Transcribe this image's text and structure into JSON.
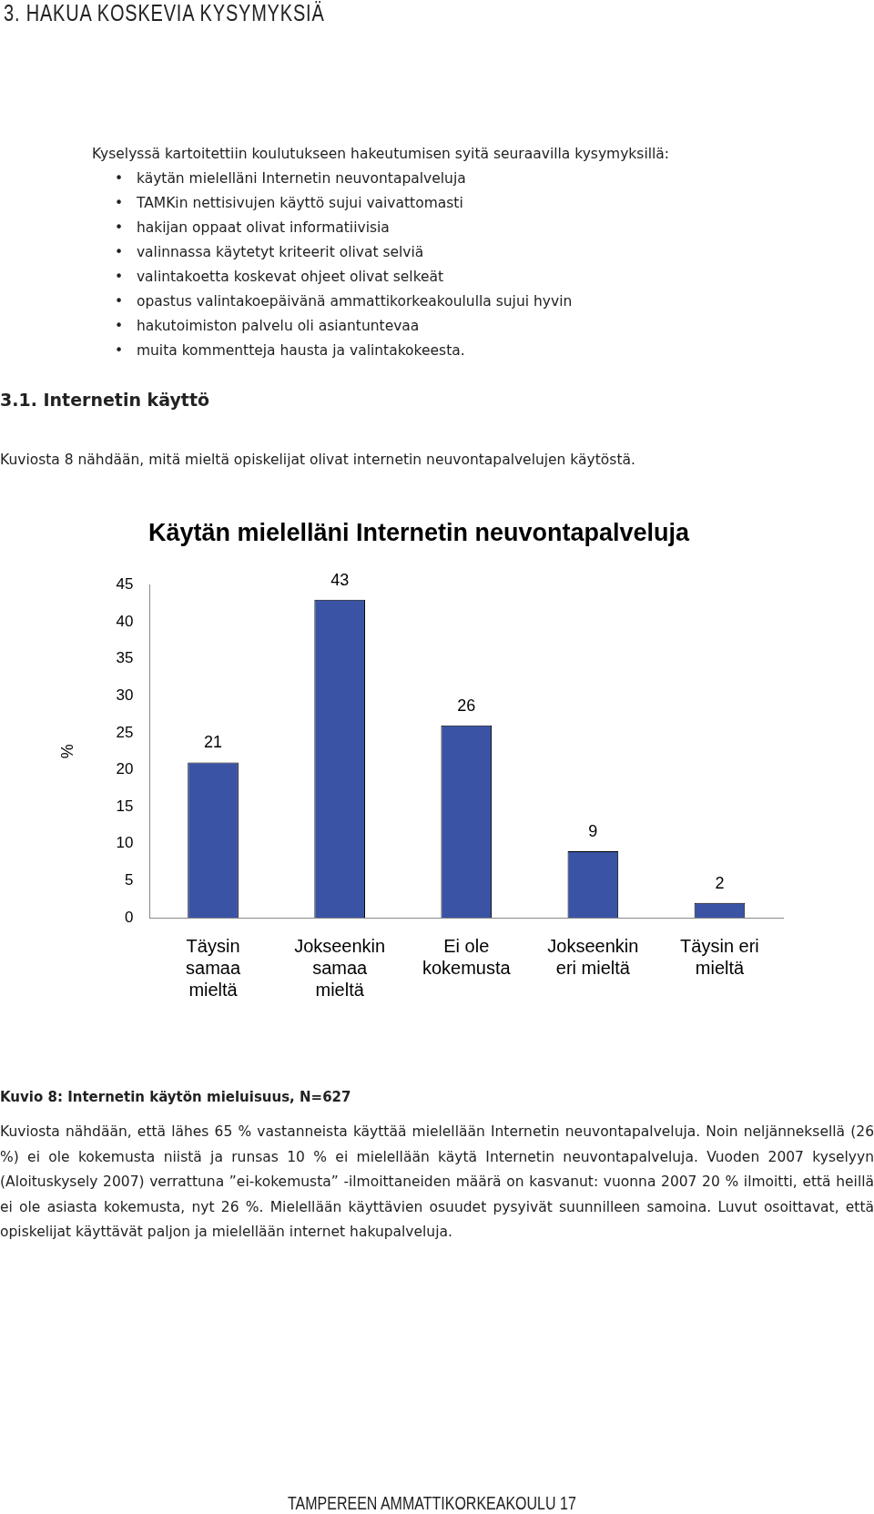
{
  "chart_data": {
    "type": "bar",
    "title": "Käytän mielelläni Internetin neuvontapalveluja",
    "ylabel": "%",
    "categories": [
      "Täysin samaa mieltä",
      "Jokseenkin samaa mieltä",
      "Ei ole kokemusta",
      "Jokseenkin eri mieltä",
      "Täysin eri mieltä"
    ],
    "values": [
      21,
      43,
      26,
      9,
      2
    ],
    "color": "#3a53a4",
    "ylim": [
      0,
      45
    ],
    "yticks": [
      0,
      5,
      10,
      15,
      20,
      25,
      30,
      35,
      40,
      45
    ],
    "grid": false,
    "legend": false,
    "data_labels": true,
    "annotations": [
      "3. HAKUA KOSKEVIA KYSYMYKSIÄ",
      "Kyselyssä kartoitettiin koulutukseen hakeutumisen syitä seuraavilla kysymyksillä:",
      "•   käytän mielelläni Internetin neuvontapalveluja",
      "•   TAMKin nettisivujen käyttö sujui vaivattomasti",
      "•   hakijan oppaat olivat informatiivisia",
      "•   valinnassa käytetyt kriteerit olivat selviä",
      "•   valintakoetta koskevat ohjeet olivat selkeät",
      "•   opastus valintakoepäivänä ammattikorkeakoululla sujui hyvin",
      "•   hakutoimiston palvelu oli asiantuntevaa",
      "•   muita kommentteja hausta ja valintakokeesta.",
      "3.1. Internetin käyttö",
      "Kuviosta 8 nähdään, mitä mieltä opiskelijat olivat internetin neuvontapalvelujen käytöstä.",
      "Kuvio 8: Internetin käytön mieluisuus, N=627",
      "Kuviosta nähdään, että lähes 65 % vastanneista käyttää mielellään Internetin neuvontapalveluja. Noin neljänneksellä (26 %) ei ole kokemusta niistä ja runsas 10 % ei mielellään käytä Internetin neuvontapalveluja. Vuoden 2007 kyselyyn (Aloituskysely 2007) verrattuna ”ei-kokemusta” -ilmoittaneiden määrä on kasvanut: vuonna 2007 20 % ilmoitti, että heillä ei ole asiasta kokemusta, nyt 26 %. Mielellään käyttävien osuudet pysyivät suunnilleen samoina. Luvut osoittavat, että opiskelijat käyttävät paljon ja mielellään internet hakupalveluja.",
      "TAMPEREEN AMMATTIKORKEAKOULU 17"
    ]
  }
}
